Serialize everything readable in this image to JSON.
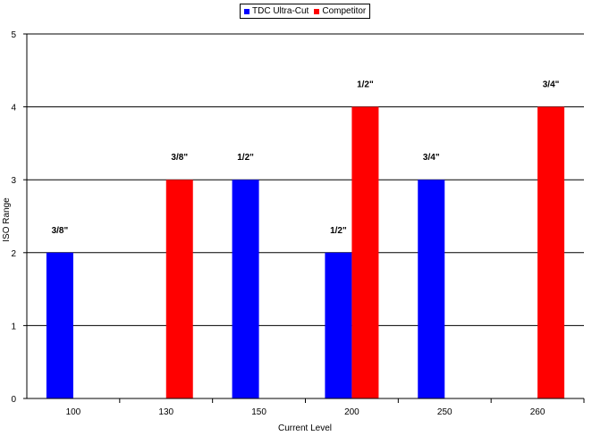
{
  "chart_data": {
    "type": "bar",
    "categories": [
      "100",
      "130",
      "150",
      "200",
      "250",
      "260"
    ],
    "series": [
      {
        "name": "TDC Ultra-Cut",
        "color": "#0000ff",
        "values": [
          2,
          null,
          3,
          2,
          3,
          null
        ]
      },
      {
        "name": "Competitor",
        "color": "#ff0000",
        "values": [
          null,
          3,
          null,
          4,
          null,
          4
        ]
      }
    ],
    "annotations": [
      {
        "category": "100",
        "series": "TDC Ultra-Cut",
        "text": "3/8\""
      },
      {
        "category": "130",
        "series": "Competitor",
        "text": "3/8\""
      },
      {
        "category": "150",
        "series": "TDC Ultra-Cut",
        "text": "1/2\""
      },
      {
        "category": "200",
        "series": "TDC Ultra-Cut",
        "text": "1/2\""
      },
      {
        "category": "200",
        "series": "Competitor",
        "text": "1/2\""
      },
      {
        "category": "250",
        "series": "TDC Ultra-Cut",
        "text": "3/4\""
      },
      {
        "category": "260",
        "series": "Competitor",
        "text": "3/4\""
      }
    ],
    "xlabel": "Current Level",
    "ylabel": "ISO Range",
    "ylim": [
      0,
      5
    ],
    "yticks": [
      0,
      1,
      2,
      3,
      4,
      5
    ],
    "grid": true,
    "legend_position": "top"
  }
}
